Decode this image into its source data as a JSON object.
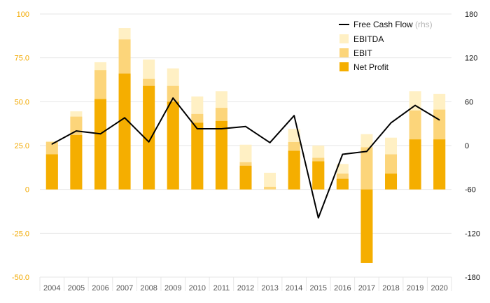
{
  "chart_data": {
    "type": "bar",
    "categories": [
      "2004",
      "2005",
      "2006",
      "2007",
      "2008",
      "2009",
      "2010",
      "2011",
      "2012",
      "2013",
      "2014",
      "2015",
      "2016",
      "2017",
      "2018",
      "2019",
      "2020"
    ],
    "series": [
      {
        "name": "Net Profit",
        "kind": "bar",
        "color": "#f5ae00",
        "values": [
          20,
          31,
          51.5,
          66,
          59,
          50,
          38,
          39,
          13.5,
          0,
          22,
          16,
          6,
          -42,
          9,
          28.5,
          28.5
        ]
      },
      {
        "name": "EBIT",
        "kind": "bar",
        "color": "#fcd57a",
        "values": [
          27,
          41.5,
          68,
          85.5,
          63,
          59,
          43,
          46.5,
          15.5,
          1.5,
          27,
          18,
          9,
          24,
          20,
          45,
          45.5
        ]
      },
      {
        "name": "EBITDA",
        "kind": "bar",
        "color": "#fff0c4",
        "values": [
          27.5,
          44.5,
          72.5,
          92,
          74,
          69,
          53,
          56,
          25.5,
          9.5,
          34.5,
          25,
          14.5,
          31.5,
          29.5,
          56,
          54.5
        ]
      },
      {
        "name": "Free Cash Flow",
        "sub": "(rhs)",
        "kind": "line",
        "axis": "right",
        "color": "#000000",
        "values": [
          2,
          20,
          16,
          38,
          5,
          65,
          23,
          23,
          26,
          4,
          41,
          -99,
          -12,
          -8,
          31,
          55,
          35
        ]
      }
    ],
    "ylim": [
      -50,
      100
    ],
    "yticks": [
      "-50.0",
      "-25.0",
      "0",
      "25.0",
      "50.0",
      "75.0",
      "100"
    ],
    "y2lim": [
      -180,
      180
    ],
    "y2ticks": [
      "-180",
      "-120",
      "-60",
      "0",
      "60",
      "120",
      "180"
    ],
    "legend": [
      "Free Cash Flow",
      "EBITDA",
      "EBIT",
      "Net Profit"
    ],
    "legend_position": "top-right",
    "grid": true
  }
}
